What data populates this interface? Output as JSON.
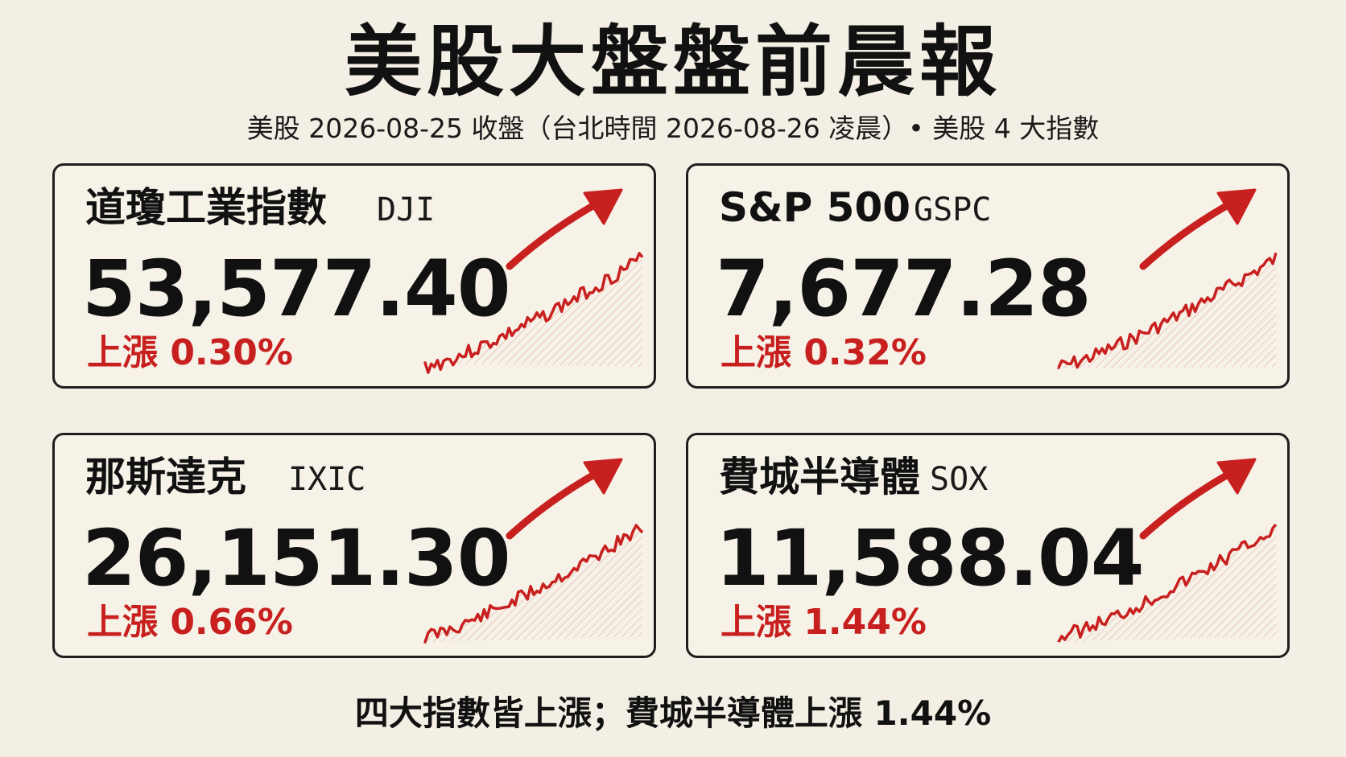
{
  "header": {
    "title": "美股大盤盤前晨報",
    "subtitle": "美股 2026-08-25 收盤（台北時間 2026-08-26 凌晨）• 美股 4 大指數"
  },
  "cards": [
    {
      "name": "道瓊工業指數",
      "ticker": "DJI",
      "value": "53,577.40",
      "change": "上漲 0.30%"
    },
    {
      "name": "S&P 500",
      "ticker": "GSPC",
      "value": "7,677.28",
      "change": "上漲 0.32%"
    },
    {
      "name": "那斯達克",
      "ticker": "IXIC",
      "value": "26,151.30",
      "change": "上漲 0.66%"
    },
    {
      "name": "費城半導體",
      "ticker": "SOX",
      "value": "11,588.04",
      "change": "上漲 1.44%"
    }
  ],
  "footer": {
    "summary": "四大指數皆上漲；費城半導體上漲 1.44%"
  },
  "colors": {
    "up": "#c8201f",
    "text": "#111111",
    "background": "#f4efe4",
    "border": "#1f1f1f"
  },
  "icons": {
    "trend": "up-arrow-icon"
  }
}
